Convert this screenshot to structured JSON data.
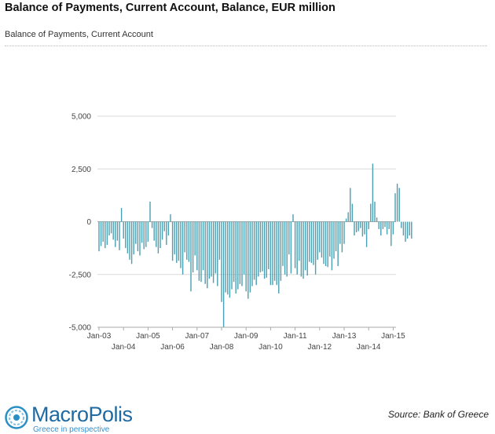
{
  "header": {
    "title": "Balance of Payments, Current Account, Balance, EUR million",
    "subtitle": "Balance of Payments, Current Account"
  },
  "footer": {
    "logo_name": "MacroPolis",
    "logo_tagline": "Greece in perspective",
    "source": "Source: Bank of Greece"
  },
  "colors": {
    "bar": "#4a9fb0",
    "grid": "#d9d9d9",
    "axis": "#aaaaaa",
    "logo_blue": "#1f6aa3"
  },
  "chart_data": {
    "type": "bar",
    "title": "",
    "xlabel": "",
    "ylabel": "",
    "ylim": [
      -5000,
      5000
    ],
    "yticks": [
      -5000,
      -2500,
      0,
      2500,
      5000
    ],
    "ytick_labels": [
      "-5,000",
      "-2,500",
      "0",
      "2,500",
      "5,000"
    ],
    "xtick_labels_row1": [
      "Jan-03",
      "Jan-05",
      "Jan-07",
      "Jan-09",
      "Jan-11",
      "Jan-13",
      "Jan-15"
    ],
    "xtick_labels_row2": [
      "Jan-04",
      "Jan-06",
      "Jan-08",
      "Jan-10",
      "Jan-12",
      "Jan-14"
    ],
    "grid": true,
    "legend": "none",
    "start_month": "Jan-03",
    "values": [
      -1400,
      -1150,
      -950,
      -1250,
      -1100,
      -650,
      -550,
      -850,
      -1200,
      -900,
      -1350,
      650,
      -800,
      -1250,
      -1500,
      -1800,
      -2000,
      -1550,
      -1050,
      -1400,
      -1600,
      -1000,
      -1300,
      -1200,
      -950,
      950,
      -300,
      -900,
      -1200,
      -1500,
      -1250,
      -850,
      -450,
      -1100,
      -650,
      350,
      -1850,
      -1550,
      -1950,
      -1850,
      -2200,
      -2500,
      -1450,
      -1800,
      -1900,
      -3300,
      -2400,
      -1600,
      -2300,
      -2800,
      -2850,
      -2300,
      -2950,
      -3150,
      -2700,
      -2600,
      -2900,
      -2450,
      -3050,
      -1800,
      -3800,
      -5000,
      -3350,
      -3450,
      -3600,
      -3200,
      -2850,
      -3400,
      -3200,
      -2950,
      -3050,
      -2500,
      -3300,
      -3650,
      -3350,
      -3050,
      -2750,
      -3000,
      -2600,
      -2400,
      -2350,
      -2700,
      -2650,
      -2250,
      -3000,
      -3000,
      -2800,
      -3000,
      -3400,
      -2800,
      -2100,
      -2500,
      -2600,
      -1550,
      -2450,
      350,
      -2200,
      -2500,
      -1850,
      -2600,
      -2700,
      -2300,
      -2550,
      -1900,
      -1950,
      -2050,
      -2500,
      -1800,
      -1450,
      -1700,
      -2000,
      -2100,
      -2150,
      -1650,
      -2300,
      -1750,
      -1400,
      -2100,
      -1050,
      -1450,
      -1050,
      150,
      450,
      1600,
      850,
      -650,
      -500,
      -450,
      -300,
      -700,
      -600,
      -1200,
      -350,
      850,
      2750,
      950,
      200,
      -350,
      -650,
      -350,
      -250,
      -600,
      -350,
      -1150,
      -600,
      1350,
      1800,
      1600,
      -300,
      -650,
      -950,
      -800,
      -650,
      -800
    ]
  }
}
